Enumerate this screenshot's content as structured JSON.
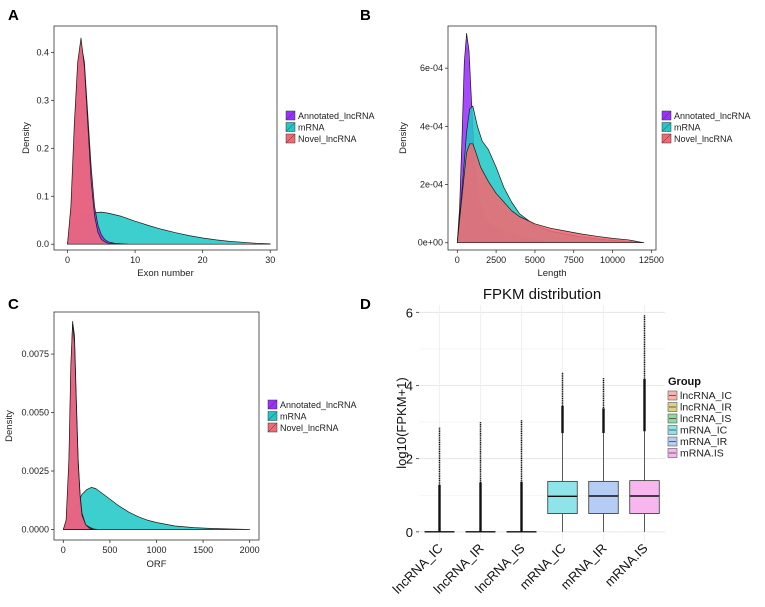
{
  "chart_data": [
    {
      "panel": "A",
      "type": "area",
      "title": "",
      "xlabel": "Exon number",
      "ylabel": "Density",
      "xlim": [
        -2,
        31
      ],
      "ylim": [
        -0.012,
        0.455
      ],
      "xticks": [
        0,
        10,
        20,
        30
      ],
      "yticks": [
        0.0,
        0.1,
        0.2,
        0.3,
        0.4
      ],
      "ytick_labels": [
        "0.0",
        "0.1",
        "0.2",
        "0.3",
        "0.4"
      ],
      "legend": [
        "Annotated_lncRNA",
        "mRNA",
        "Novel_lncRNA"
      ],
      "series": [
        {
          "name": "mRNA",
          "color": "#22c7c7",
          "x": [
            0,
            1,
            2,
            3,
            4,
            5,
            6,
            8,
            10,
            12,
            14,
            16,
            18,
            20,
            22,
            24,
            26,
            28,
            30
          ],
          "y": [
            0.0,
            0.045,
            0.056,
            0.062,
            0.066,
            0.067,
            0.065,
            0.058,
            0.048,
            0.039,
            0.031,
            0.024,
            0.018,
            0.013,
            0.009,
            0.006,
            0.004,
            0.002,
            0.001
          ]
        },
        {
          "name": "Annotated_lncRNA",
          "color": "#9b30ff",
          "x": [
            0,
            0.5,
            1,
            1.5,
            2,
            2.5,
            3,
            3.5,
            4,
            4.5,
            5,
            5.5,
            6,
            7,
            8,
            9
          ],
          "y": [
            0.0,
            0.06,
            0.22,
            0.37,
            0.42,
            0.38,
            0.27,
            0.16,
            0.08,
            0.04,
            0.02,
            0.01,
            0.005,
            0.002,
            0.001,
            0.0
          ]
        },
        {
          "name": "Novel_lncRNA",
          "color": "#f06a73",
          "x": [
            0,
            0.5,
            1,
            1.5,
            2,
            2.5,
            3,
            3.5,
            4,
            4.5,
            5,
            5.5,
            6,
            7,
            8
          ],
          "y": [
            0.0,
            0.08,
            0.25,
            0.38,
            0.43,
            0.37,
            0.25,
            0.13,
            0.06,
            0.025,
            0.01,
            0.005,
            0.002,
            0.001,
            0.0
          ]
        }
      ]
    },
    {
      "panel": "B",
      "type": "area",
      "title": "",
      "xlabel": "Length",
      "ylabel": "Density",
      "xlim": [
        -600,
        12800
      ],
      "ylim": [
        -2.5e-05,
        0.000745
      ],
      "xticks": [
        0,
        2500,
        5000,
        7500,
        10000,
        12500
      ],
      "yticks": [
        0,
        0.0002,
        0.0004,
        0.0006
      ],
      "ytick_labels": [
        "0e+00",
        "2e-04",
        "4e-04",
        "6e-04"
      ],
      "legend": [
        "Annotated_lncRNA",
        "mRNA",
        "Novel_lncRNA"
      ],
      "series": [
        {
          "name": "Annotated_lncRNA",
          "color": "#9b30ff",
          "x": [
            0,
            150,
            300,
            450,
            600,
            750,
            900,
            1050,
            1200,
            1400,
            1700,
            2000,
            2500,
            3000,
            4000,
            5000,
            6000
          ],
          "y": [
            0.0,
            0.00012,
            0.00036,
            0.00062,
            0.00072,
            0.00066,
            0.0005,
            0.00034,
            0.00023,
            0.00015,
            0.0001,
            7e-05,
            5e-05,
            4e-05,
            2e-05,
            1e-05,
            0.0
          ]
        },
        {
          "name": "mRNA",
          "color": "#22c7c7",
          "x": [
            0,
            300,
            600,
            800,
            1000,
            1300,
            1600,
            2000,
            2500,
            3000,
            3500,
            4000,
            4500,
            5000,
            6000,
            7000,
            8000,
            9000,
            10000,
            11000,
            12000
          ],
          "y": [
            0.0,
            0.00018,
            0.00038,
            0.00046,
            0.00047,
            0.0004,
            0.00035,
            0.00032,
            0.00026,
            0.00019,
            0.00014,
            0.0001,
            8e-05,
            6e-05,
            4e-05,
            3e-05,
            2e-05,
            1.3e-05,
            8e-06,
            4e-06,
            0.0
          ]
        },
        {
          "name": "Novel_lncRNA",
          "color": "#f06a73",
          "x": [
            0,
            300,
            600,
            800,
            1000,
            1200,
            1500,
            2000,
            2500,
            3000,
            3500,
            4000,
            5000,
            6000,
            7000,
            8000,
            9000,
            10000,
            11000,
            12000
          ],
          "y": [
            0.0,
            0.00016,
            0.00031,
            0.00034,
            0.00034,
            0.00031,
            0.00026,
            0.00021,
            0.00017,
            0.00014,
            0.00011,
            9e-05,
            6.5e-05,
            5e-05,
            4e-05,
            3e-05,
            2.2e-05,
            1.5e-05,
            1e-05,
            0.0
          ]
        }
      ]
    },
    {
      "panel": "C",
      "type": "area",
      "title": "",
      "xlabel": "ORF",
      "ylabel": "Density",
      "xlim": [
        -100,
        2100
      ],
      "ylim": [
        -0.00045,
        0.0093
      ],
      "xticks": [
        0,
        500,
        1000,
        1500,
        2000
      ],
      "yticks": [
        0.0,
        0.0025,
        0.005,
        0.0075
      ],
      "ytick_labels": [
        "0.0000",
        "0.0025",
        "0.0050",
        "0.0075"
      ],
      "legend": [
        "Annotated_lncRNA",
        "mRNA",
        "Novel_lncRNA"
      ],
      "series": [
        {
          "name": "mRNA",
          "color": "#22c7c7",
          "x": [
            0,
            50,
            100,
            150,
            200,
            250,
            300,
            350,
            400,
            500,
            600,
            700,
            800,
            900,
            1000,
            1200,
            1400,
            1600,
            1800,
            2000
          ],
          "y": [
            0.0,
            0.0003,
            0.0007,
            0.0011,
            0.0015,
            0.0017,
            0.0018,
            0.00175,
            0.0016,
            0.0013,
            0.001,
            0.00075,
            0.00055,
            0.0004,
            0.0003,
            0.00015,
            8e-05,
            4e-05,
            2e-05,
            0.0
          ]
        },
        {
          "name": "Annotated_lncRNA",
          "color": "#9b30ff",
          "x": [
            0,
            30,
            60,
            80,
            100,
            120,
            140,
            160,
            180,
            200,
            240,
            280,
            320,
            360
          ],
          "y": [
            0.0,
            0.0003,
            0.0025,
            0.0065,
            0.0089,
            0.0083,
            0.0055,
            0.003,
            0.0015,
            0.0007,
            0.0002,
            0.0001,
            3e-05,
            0.0
          ]
        },
        {
          "name": "Novel_lncRNA",
          "color": "#f06a73",
          "x": [
            0,
            30,
            60,
            80,
            100,
            120,
            140,
            160,
            180,
            200,
            240,
            280,
            320
          ],
          "y": [
            0.0,
            0.0004,
            0.003,
            0.007,
            0.0088,
            0.008,
            0.0052,
            0.0028,
            0.0014,
            0.0006,
            0.0002,
            5e-05,
            0.0
          ]
        }
      ]
    },
    {
      "panel": "D",
      "type": "boxplot",
      "title": "FPKM distribution",
      "xlabel": "",
      "ylabel": "log10(FPKM+1)",
      "ylim": [
        -0.25,
        6.2
      ],
      "yticks": [
        0,
        2,
        4,
        6
      ],
      "ytick_labels": [
        "0",
        "2",
        "4",
        "6"
      ],
      "categories": [
        "lncRNA_IC",
        "lncRNA_IR",
        "lncRNA_IS",
        "mRNA_IC",
        "mRNA_IR",
        "mRNA_IS"
      ],
      "legend_title": "Group",
      "legend": [
        "lncRNA_IC",
        "lncRNA_IR",
        "lncRNA_IS",
        "mRNA_IC",
        "mRNA_IR",
        "mRNA.IS"
      ],
      "boxes": [
        {
          "group": "lncRNA_IC",
          "color": "#f8b4b0",
          "q1": 0,
          "median": 0,
          "q3": 0,
          "whisker_low": 0,
          "whisker_high": 0,
          "outliers_max": 2.85
        },
        {
          "group": "lncRNA_IR",
          "color": "#d9d38a",
          "q1": 0,
          "median": 0,
          "q3": 0,
          "whisker_low": 0,
          "whisker_high": 0,
          "outliers_max": 3.0
        },
        {
          "group": "lncRNA_IS",
          "color": "#8fd8a0",
          "q1": 0,
          "median": 0,
          "q3": 0,
          "whisker_low": 0,
          "whisker_high": 0,
          "outliers_max": 3.05
        },
        {
          "group": "mRNA_IC",
          "color": "#8ee4e8",
          "q1": 0.5,
          "median": 0.97,
          "q3": 1.38,
          "whisker_low": 0,
          "whisker_high": 2.7,
          "outliers_max": 4.35
        },
        {
          "group": "mRNA_IR",
          "color": "#b5cdf5",
          "q1": 0.5,
          "median": 0.98,
          "q3": 1.38,
          "whisker_low": 0,
          "whisker_high": 2.7,
          "outliers_max": 4.2
        },
        {
          "group": "mRNA_IS",
          "color": "#f7b6ee",
          "q1": 0.5,
          "median": 0.98,
          "q3": 1.4,
          "whisker_low": 0,
          "whisker_high": 2.75,
          "outliers_max": 5.92
        }
      ]
    }
  ]
}
